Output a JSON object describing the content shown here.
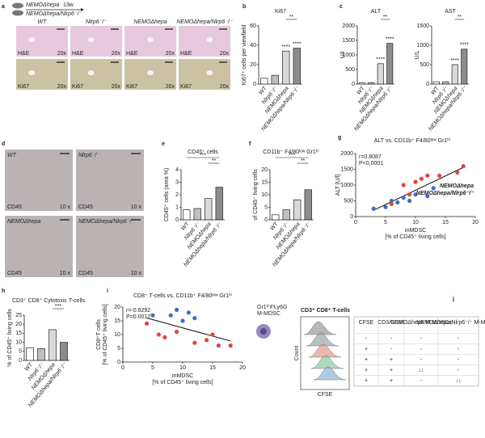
{
  "figure": {
    "panel_a": {
      "letter": "a",
      "title": "NEMOΔhepa",
      "duration": "13w",
      "subtitle": "NEMOΔhepa/Nlrp6⁻/⁻",
      "columns": [
        "WT",
        "Nlrp6⁻/⁻",
        "NEMOΔhepa",
        "NEMOΔhepa/Nlrp6⁻/⁻"
      ],
      "rows": [
        "H&E",
        "Ki67"
      ],
      "magnification": "20x"
    },
    "panel_d": {
      "letter": "d",
      "columns": [
        "WT",
        "Nlrp6⁻/⁻",
        "NEMOΔhepa",
        "NEMOΔhepa/Nlrp6⁻/⁻"
      ],
      "stain": "CD45",
      "magnification": "10 x"
    },
    "panel_j": {
      "letter": "j",
      "cell_label": [
        "Gr1ʰⁱᵍʰLy6G",
        "M-MDSC"
      ],
      "title": "CD3⁺ CD8⁺ T-cells",
      "y_label": "Count",
      "x_label": "CFSE",
      "table": {
        "header": [
          "CFSE",
          "CD3/CD28",
          "NEMOΔhepa M-MDSCs",
          "NEMOΔhepa/Nlrp6⁻/⁻ M-MDSCs"
        ],
        "rows": [
          [
            "-",
            "-",
            "-",
            "-"
          ],
          [
            "+",
            "-",
            "-",
            "-"
          ],
          [
            "+",
            "+",
            "-",
            "-"
          ],
          [
            "+",
            "+",
            "↓↓",
            "-"
          ],
          [
            "+",
            "+",
            "-",
            "↓↓"
          ]
        ]
      }
    }
  },
  "chart_data": [
    {
      "type": "bar",
      "letter": "b",
      "title": "Ki67",
      "y_label": "Ki67⁺ cells per viewfield",
      "categories": [
        "WT",
        "Nlrp6⁻/⁻",
        "NEMOΔhepa",
        "NEMOΔhepa/Nlrp6⁻/⁻"
      ],
      "values": [
        6,
        9,
        34,
        37
      ],
      "colors": [
        "#ffffff",
        "#bfbfbf",
        "#d9d9d9",
        "#8c8c8c"
      ],
      "ylim": [
        0,
        60
      ],
      "yticks": [
        0,
        20,
        40,
        60
      ],
      "bar_labels": [
        null,
        null,
        "****",
        "****"
      ],
      "brackets": [
        "**"
      ]
    },
    {
      "type": "bar",
      "letter": "c",
      "title": "ALT",
      "y_label": "U/l",
      "categories": [
        "WT",
        "Nlrp6⁻/⁻",
        "NEMOΔhepa",
        "NEMOΔhepa/Nlrp6⁻/⁻"
      ],
      "values": [
        40,
        50,
        700,
        1400
      ],
      "colors": [
        "#ffffff",
        "#bfbfbf",
        "#d9d9d9",
        "#8c8c8c"
      ],
      "ylim": [
        0,
        2000
      ],
      "yticks": [
        0,
        500,
        1000,
        1500,
        2000
      ],
      "bar_labels": [
        null,
        null,
        "****",
        "****"
      ],
      "brackets": [
        "**"
      ]
    },
    {
      "type": "bar",
      "title": "AST",
      "y_label": "U/L",
      "categories": [
        "WT",
        "Nlrp6⁻/⁻",
        "NEMOΔhepa",
        "NEMOΔhepa/Nlrp6⁻/⁻"
      ],
      "values": [
        60,
        60,
        500,
        900
      ],
      "colors": [
        "#ffffff",
        "#bfbfbf",
        "#d9d9d9",
        "#8c8c8c"
      ],
      "ylim": [
        0,
        1500
      ],
      "yticks": [
        0,
        500,
        1000,
        1500
      ],
      "bar_labels": [
        null,
        null,
        "****",
        "****"
      ],
      "brackets": [
        "**"
      ]
    },
    {
      "type": "bar",
      "letter": "e",
      "title": "CD45⁺ cells",
      "y_label": "CD45⁺ cells (area %)",
      "categories": [
        "WT",
        "Nlrp6⁻/⁻",
        "NEMOΔhepa",
        "NEMOΔhepa/Nlrp6⁻/⁻"
      ],
      "values": [
        0.8,
        0.9,
        1.7,
        2.6
      ],
      "colors": [
        "#ffffff",
        "#bfbfbf",
        "#d9d9d9",
        "#8c8c8c"
      ],
      "ylim": [
        0,
        4
      ],
      "yticks": [
        0,
        1,
        2,
        3,
        4
      ],
      "bar_labels": [
        null,
        null,
        null,
        null
      ],
      "brackets": [
        "**",
        "***"
      ]
    },
    {
      "type": "bar",
      "letter": "f",
      "title": "CD11b⁺ F4/80ˡᵒʷ Gr1ʰⁱ",
      "y_label": "of CD45⁺ living cells",
      "categories": [
        "WT",
        "Nlrp6⁻/⁻",
        "NEMOΔhepa",
        "NEMOΔhepa/Nlrp6⁻/⁻"
      ],
      "values": [
        2,
        4,
        8,
        12
      ],
      "colors": [
        "#ffffff",
        "#bfbfbf",
        "#d9d9d9",
        "#8c8c8c"
      ],
      "ylim": [
        0,
        20
      ],
      "yticks": [
        0,
        5,
        10,
        15,
        20
      ],
      "bar_labels": [
        null,
        null,
        null,
        null
      ],
      "brackets": [
        "**",
        "***"
      ]
    },
    {
      "type": "scatter",
      "letter": "g",
      "title": "ALT vs. CD11b⁺ F4/80ˡᵒʷ Gr1ʰⁱ",
      "x_label": [
        "mMDSC",
        "[% of CD45⁺ living cells]"
      ],
      "y_label": [
        "ALT [U/l]"
      ],
      "stats": [
        "r=0.8087",
        "P<0,0001"
      ],
      "xlim": [
        0,
        20
      ],
      "xticks": [
        0,
        5,
        10,
        15,
        20
      ],
      "ylim": [
        0,
        2000
      ],
      "yticks": [
        0,
        500,
        1000,
        1500,
        2000
      ],
      "series": [
        {
          "name": "NEMOΔhepa",
          "color": "#3a6fc4",
          "x": [
            3,
            5,
            6,
            7,
            8,
            9,
            10,
            12,
            13
          ],
          "values": [
            250,
            300,
            500,
            450,
            600,
            500,
            700,
            650,
            900
          ]
        },
        {
          "name": "NEMOΔhepa/Nlrp6⁻/⁻",
          "color": "#e0463a",
          "x": [
            6,
            8,
            9,
            10,
            11,
            12,
            14,
            17,
            18
          ],
          "values": [
            400,
            1000,
            700,
            1100,
            1200,
            1300,
            1300,
            1400,
            1600
          ]
        }
      ]
    },
    {
      "type": "bar",
      "letter": "h",
      "title": "CD3⁺ CD8⁺ Cytotoxic T-cells",
      "y_label": "% of CD45⁺ living cells",
      "categories": [
        "WT",
        "Nlrp6⁻/⁻",
        "NEMOΔhepa",
        "NEMOΔhepa/Nlrp6⁻/⁻"
      ],
      "values": [
        7,
        6.5,
        17,
        10
      ],
      "colors": [
        "#ffffff",
        "#bfbfbf",
        "#d9d9d9",
        "#8c8c8c"
      ],
      "ylim": [
        0,
        25
      ],
      "yticks": [
        0,
        5,
        10,
        15,
        20,
        25
      ],
      "bar_labels": [
        null,
        null,
        null,
        null
      ],
      "brackets": [
        "***"
      ]
    },
    {
      "type": "scatter",
      "letter": "i",
      "title": "CD8⁺ T-cells vs. CD11b⁺ F4/80ˡᵒʷ Gr1ʰⁱ",
      "x_label": [
        "mMDSC",
        "[% of CD45⁺ living cells]"
      ],
      "y_label": [
        "CD8⁺T cells",
        "[% of CD45⁺ living cells]"
      ],
      "stats": [
        "r=-0.6292",
        "P=0.0017"
      ],
      "xlim": [
        0,
        20
      ],
      "xticks": [
        0,
        5,
        10,
        15,
        20
      ],
      "ylim": [
        0,
        20
      ],
      "yticks": [
        0,
        5,
        10,
        15,
        20
      ],
      "series": [
        {
          "color": "#3a6fc4",
          "x": [
            5,
            8,
            9,
            10,
            11,
            12
          ],
          "values": [
            17,
            17,
            19,
            15,
            18,
            16
          ]
        },
        {
          "color": "#e0463a",
          "x": [
            4,
            6,
            7,
            9,
            12,
            14,
            15,
            16,
            18
          ],
          "values": [
            14,
            10,
            9,
            11,
            7,
            8,
            10,
            6,
            6
          ]
        }
      ]
    }
  ]
}
